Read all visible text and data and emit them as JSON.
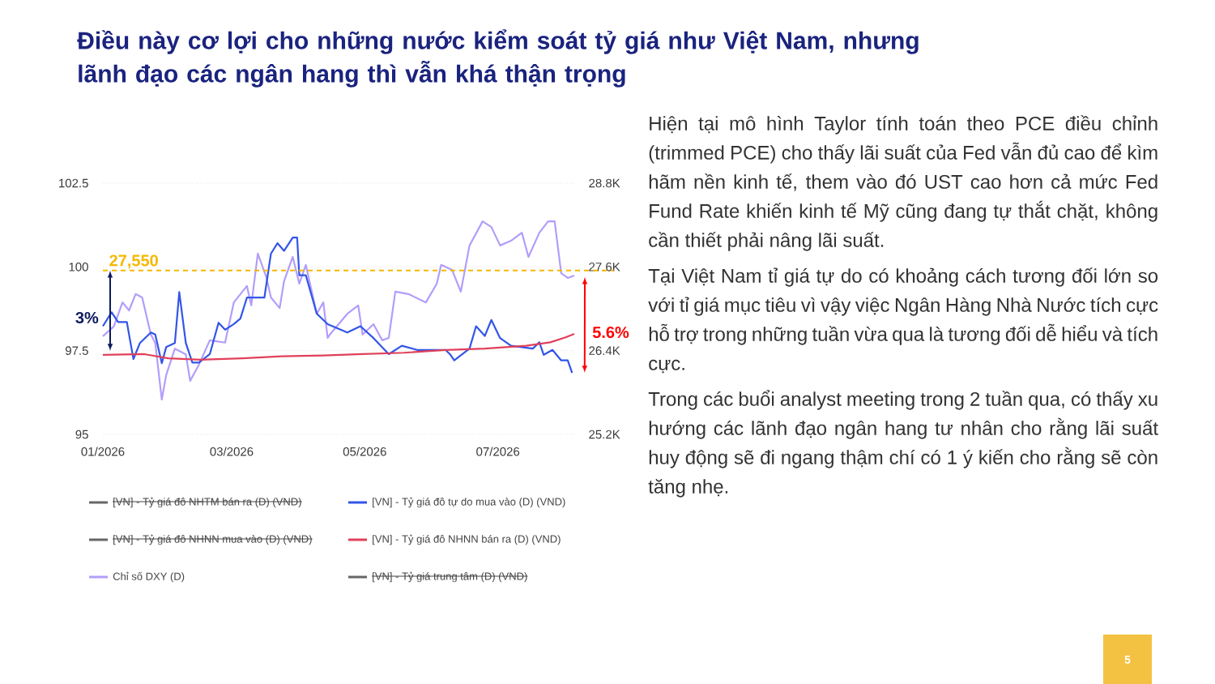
{
  "chart_data": {
    "type": "line",
    "title": "Điều này cơ lợi cho những nước kiểm soát tỷ giá như Việt Nam, nhưng lãnh đạo các ngân hang thì vẫn khá thận trọng",
    "annotations": [
      "3%",
      "5.6%",
      "Hiện tại mô hình Taylor tính toán theo PCE điều chỉnh (trimmed PCE) cho thấy lãi suất của Fed vẫn đủ cao để kìm hãm nền kinh tế, them vào đó UST cao hơn cả mức Fed Fund Rate khiến kinh tế Mỹ cũng đang tự thắt chặt, không cần thiết phải nâng lãi suất.",
      "Tại Việt Nam tỉ giá tự do có khoảng cách tương đối lớn so với tỉ giá mục tiêu vì vậy việc Ngân Hàng Nhà Nước tích cực hỗ trợ trong những tuần vừa qua là tương đối dễ hiểu và tích cực.",
      "Trong các buổi analyst meeting trong 2 tuần qua, có thấy xu hướng các lãnh đạo ngân hang tư nhân cho rằng lãi suất huy động sẽ đi ngang thậm chí có 1 ý kiến cho rằng sẽ còn tăng nhẹ.",
      "5"
    ],
    "xlim": [
      "2026-01-01",
      "2026-08-05"
    ],
    "xticks": [
      {
        "value": "2026-01-01",
        "label": "01/2026"
      },
      {
        "value": "2026-03-01",
        "label": "03/2026"
      },
      {
        "value": "2026-05-01",
        "label": "05/2026"
      },
      {
        "value": "2026-07-01",
        "label": "07/2026"
      }
    ],
    "ylim": [
      95,
      102.5
    ],
    "yticks": [
      95,
      97.5,
      100,
      102.5
    ],
    "y2lim": [
      25200,
      28800
    ],
    "y2ticks": [
      {
        "value": 25200,
        "label": "25.2K"
      },
      {
        "value": 26400,
        "label": "26.4K"
      },
      {
        "value": 27600,
        "label": "27.6K"
      },
      {
        "value": 28800,
        "label": "28.8K"
      }
    ],
    "grid": "y",
    "legend": "bottom",
    "marker": "none",
    "ref_lines": [
      {
        "axis": "y2",
        "value": 27550,
        "label": "27,550",
        "color": "#f5b800",
        "line_style": "dashed"
      }
    ],
    "series": [
      {
        "name": "[VN] - Tỷ giá đô NHTM bán ra (D) (VND)",
        "color": "#666666",
        "axis": "y2"
      },
      {
        "name": "[VN] - Tỷ giá đô tự do mua vào (D) (VND)",
        "color": "#3355e8",
        "axis": "y2",
        "x": [
          "2026-01-01",
          "2026-01-05",
          "2026-01-08",
          "2026-01-12",
          "2026-01-13",
          "2026-01-15",
          "2026-01-18",
          "2026-01-23",
          "2026-01-25",
          "2026-01-28",
          "2026-01-30",
          "2026-02-03",
          "2026-02-05",
          "2026-02-08",
          "2026-02-11",
          "2026-02-14",
          "2026-02-19",
          "2026-02-23",
          "2026-02-26",
          "2026-03-02",
          "2026-03-05",
          "2026-03-08",
          "2026-03-16",
          "2026-03-19",
          "2026-03-22",
          "2026-03-25",
          "2026-03-29",
          "2026-03-31",
          "2026-04-01",
          "2026-04-04",
          "2026-04-09",
          "2026-04-14",
          "2026-04-23",
          "2026-04-29",
          "2026-05-05",
          "2026-05-12",
          "2026-05-18",
          "2026-05-25",
          "2026-06-07",
          "2026-06-09",
          "2026-06-11",
          "2026-06-18",
          "2026-06-21",
          "2026-06-25",
          "2026-06-28",
          "2026-07-02",
          "2026-07-07",
          "2026-07-17",
          "2026-07-20",
          "2026-07-22",
          "2026-07-26",
          "2026-07-30",
          "2026-08-02",
          "2026-08-04"
        ],
        "values": [
          26750,
          26950,
          26810,
          26810,
          26630,
          26280,
          26510,
          26660,
          26630,
          26220,
          26450,
          26510,
          27240,
          26510,
          26230,
          26230,
          26350,
          26800,
          26700,
          26780,
          26860,
          27160,
          27160,
          27790,
          27940,
          27830,
          28020,
          28020,
          27480,
          27480,
          26930,
          26780,
          26660,
          26750,
          26580,
          26350,
          26470,
          26410,
          26410,
          26350,
          26260,
          26430,
          26750,
          26610,
          26840,
          26580,
          26470,
          26430,
          26520,
          26340,
          26410,
          26260,
          26260,
          26080
        ]
      },
      {
        "name": "[VN] - Tỷ giá đô NHNN mua vào (D) (VND)",
        "color": "#666666",
        "axis": "y2"
      },
      {
        "name": "[VN] - Tỷ giá đô NHNN bán ra (D) (VND)",
        "color": "#e0405a",
        "axis": "y2",
        "x": [
          "2026-01-01",
          "2026-01-20",
          "2026-01-31",
          "2026-02-15",
          "2026-03-06",
          "2026-03-24",
          "2026-04-12",
          "2026-04-30",
          "2026-05-19",
          "2026-06-07",
          "2026-06-25",
          "2026-07-14",
          "2026-07-25",
          "2026-08-01",
          "2026-08-05"
        ],
        "values": [
          26340,
          26350,
          26290,
          26270,
          26290,
          26320,
          26330,
          26350,
          26370,
          26410,
          26430,
          26470,
          26520,
          26590,
          26640
        ]
      },
      {
        "name": "Chỉ số DXY (D)",
        "color": "#b39dfa",
        "x": [
          "2026-01-01",
          "2026-01-06",
          "2026-01-10",
          "2026-01-13",
          "2026-01-16",
          "2026-01-19",
          "2026-01-21",
          "2026-01-23",
          "2026-01-25",
          "2026-01-28",
          "2026-01-30",
          "2026-02-03",
          "2026-02-08",
          "2026-02-10",
          "2026-02-14",
          "2026-02-19",
          "2026-02-26",
          "2026-03-02",
          "2026-03-08",
          "2026-03-10",
          "2026-03-13",
          "2026-03-17",
          "2026-03-19",
          "2026-03-23",
          "2026-03-25",
          "2026-03-29",
          "2026-04-01",
          "2026-04-04",
          "2026-04-09",
          "2026-04-12",
          "2026-04-14",
          "2026-04-15",
          "2026-04-23",
          "2026-04-28",
          "2026-04-30",
          "2026-05-05",
          "2026-05-09",
          "2026-05-12",
          "2026-05-15",
          "2026-05-21",
          "2026-05-29",
          "2026-06-03",
          "2026-06-05",
          "2026-06-10",
          "2026-06-14",
          "2026-06-18",
          "2026-06-24",
          "2026-06-28",
          "2026-07-02",
          "2026-07-07",
          "2026-07-12",
          "2026-07-15",
          "2026-07-20",
          "2026-07-24",
          "2026-07-27",
          "2026-07-30",
          "2026-08-02",
          "2026-08-05"
        ],
        "values": [
          97.93,
          98.22,
          98.94,
          98.7,
          99.19,
          99.09,
          98.53,
          97.98,
          97.73,
          96.04,
          96.77,
          97.56,
          97.39,
          96.6,
          97.08,
          97.81,
          97.74,
          98.94,
          99.43,
          98.85,
          100.4,
          99.67,
          99.09,
          98.77,
          99.57,
          100.3,
          99.5,
          100.06,
          98.6,
          98.94,
          97.88,
          97.98,
          98.6,
          98.85,
          97.98,
          98.29,
          97.81,
          97.88,
          99.26,
          99.19,
          98.94,
          99.5,
          100.06,
          99.91,
          99.26,
          100.64,
          101.36,
          101.19,
          100.64,
          100.78,
          101.02,
          100.3,
          101.02,
          101.36,
          101.36,
          99.81,
          99.67,
          99.74
        ]
      },
      {
        "name": "[VN] - Tỷ giá trung tâm (D) (VND)",
        "color": "#666666",
        "axis": "y2"
      }
    ]
  }
}
